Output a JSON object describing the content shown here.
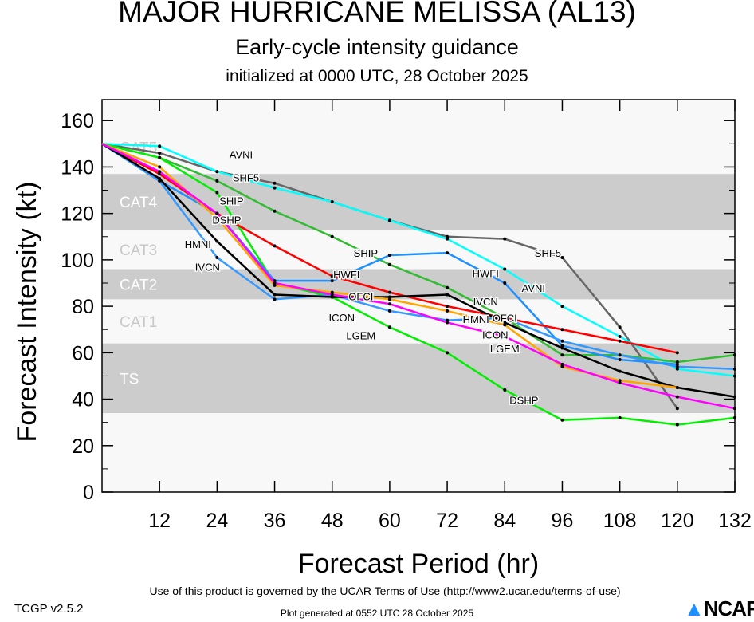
{
  "chart_data": {
    "type": "line",
    "title": "MAJOR HURRICANE MELISSA (AL13)",
    "subtitle": "Early-cycle intensity guidance",
    "init_text": "initialized at 0000 UTC, 28 October 2025",
    "xlabel": "Forecast Period (hr)",
    "ylabel": "Forecast Intensity (kt)",
    "xlim": [
      0,
      132
    ],
    "ylim": [
      0,
      169
    ],
    "xticks": [
      12,
      24,
      36,
      48,
      60,
      72,
      84,
      96,
      108,
      120,
      132
    ],
    "yticks": [
      0,
      20,
      40,
      60,
      80,
      100,
      120,
      140,
      160
    ],
    "bands": [
      {
        "label": "TS",
        "low": 34,
        "high": 64,
        "shaded": true
      },
      {
        "label": "CAT1",
        "low": 64,
        "high": 83,
        "shaded": false
      },
      {
        "label": "CAT2",
        "low": 83,
        "high": 96,
        "shaded": true
      },
      {
        "label": "CAT3",
        "low": 96,
        "high": 113,
        "shaded": false
      },
      {
        "label": "CAT4",
        "low": 113,
        "high": 137,
        "shaded": true
      },
      {
        "label": "CAT5",
        "low": 137,
        "high": 169,
        "shaded": false
      }
    ],
    "x": [
      0,
      12,
      24,
      36,
      48,
      60,
      72,
      84,
      96,
      108,
      120,
      132
    ],
    "series": [
      {
        "name": "SHF5",
        "color": "#666666",
        "label_hour": 30,
        "label_hour2": 93,
        "values": [
          150,
          146,
          138,
          133,
          125,
          117,
          110,
          109,
          101,
          71,
          36,
          null
        ]
      },
      {
        "name": "AVNI",
        "color": "#00ffff",
        "label_hour": 29,
        "label_hour2": 90,
        "values": [
          150,
          149,
          138,
          131,
          125,
          117,
          109,
          96,
          80,
          67,
          53,
          50
        ]
      },
      {
        "name": "SHIP",
        "color": "#33bb33",
        "label_hour": 27,
        "label_hour2": 55,
        "values": [
          150,
          144,
          134,
          121,
          110,
          98,
          88,
          75,
          59,
          59,
          56,
          59
        ]
      },
      {
        "name": "DSHP",
        "color": "#00ee00",
        "label_hour": 26,
        "label_hour2": 88,
        "values": [
          150,
          144,
          129,
          90,
          84,
          71,
          60,
          44,
          31,
          32,
          29,
          32
        ]
      },
      {
        "name": "HWFI",
        "color": "#1e90ff",
        "label_hour": 51,
        "label_hour2": 80,
        "values": [
          150,
          134,
          120,
          91,
          91,
          102,
          103,
          90,
          63,
          57,
          55,
          null
        ]
      },
      {
        "name": "HMNI",
        "color": "#3399ff",
        "label_hour": 20,
        "label_hour2": 78,
        "values": [
          150,
          134,
          101,
          83,
          85,
          78,
          74,
          75,
          65,
          59,
          54,
          53
        ]
      },
      {
        "name": "OFCI",
        "color": "#ff0000",
        "label_hour": 54,
        "label_hour2": 84,
        "values": [
          150,
          137,
          120,
          106,
          93,
          86,
          80,
          75,
          70,
          65,
          60,
          null
        ]
      },
      {
        "name": "IVCN",
        "color": "#000000",
        "label_hour": 22,
        "label_hour2": 80,
        "values": [
          150,
          135,
          108,
          85,
          84,
          84,
          85,
          73,
          62,
          52,
          45,
          41
        ]
      },
      {
        "name": "ICON",
        "color": "#ffa500",
        "label_hour": 50,
        "label_hour2": 82,
        "values": [
          150,
          140,
          118,
          89,
          86,
          83,
          78,
          72,
          54,
          48,
          45,
          null
        ]
      },
      {
        "name": "LGEM",
        "color": "#ff00ff",
        "label_hour": 54,
        "label_hour2": 84,
        "values": [
          150,
          138,
          120,
          90,
          85,
          81,
          73,
          67,
          55,
          47,
          41,
          36
        ]
      }
    ]
  },
  "footer": {
    "terms": "Use of this product is governed by the UCAR Terms of Use (http://www2.ucar.edu/terms-of-use)",
    "generated": "Plot generated at 0552 UTC   28 October 2025",
    "version": "TCGP v2.5.2",
    "logo": "NCAR"
  }
}
